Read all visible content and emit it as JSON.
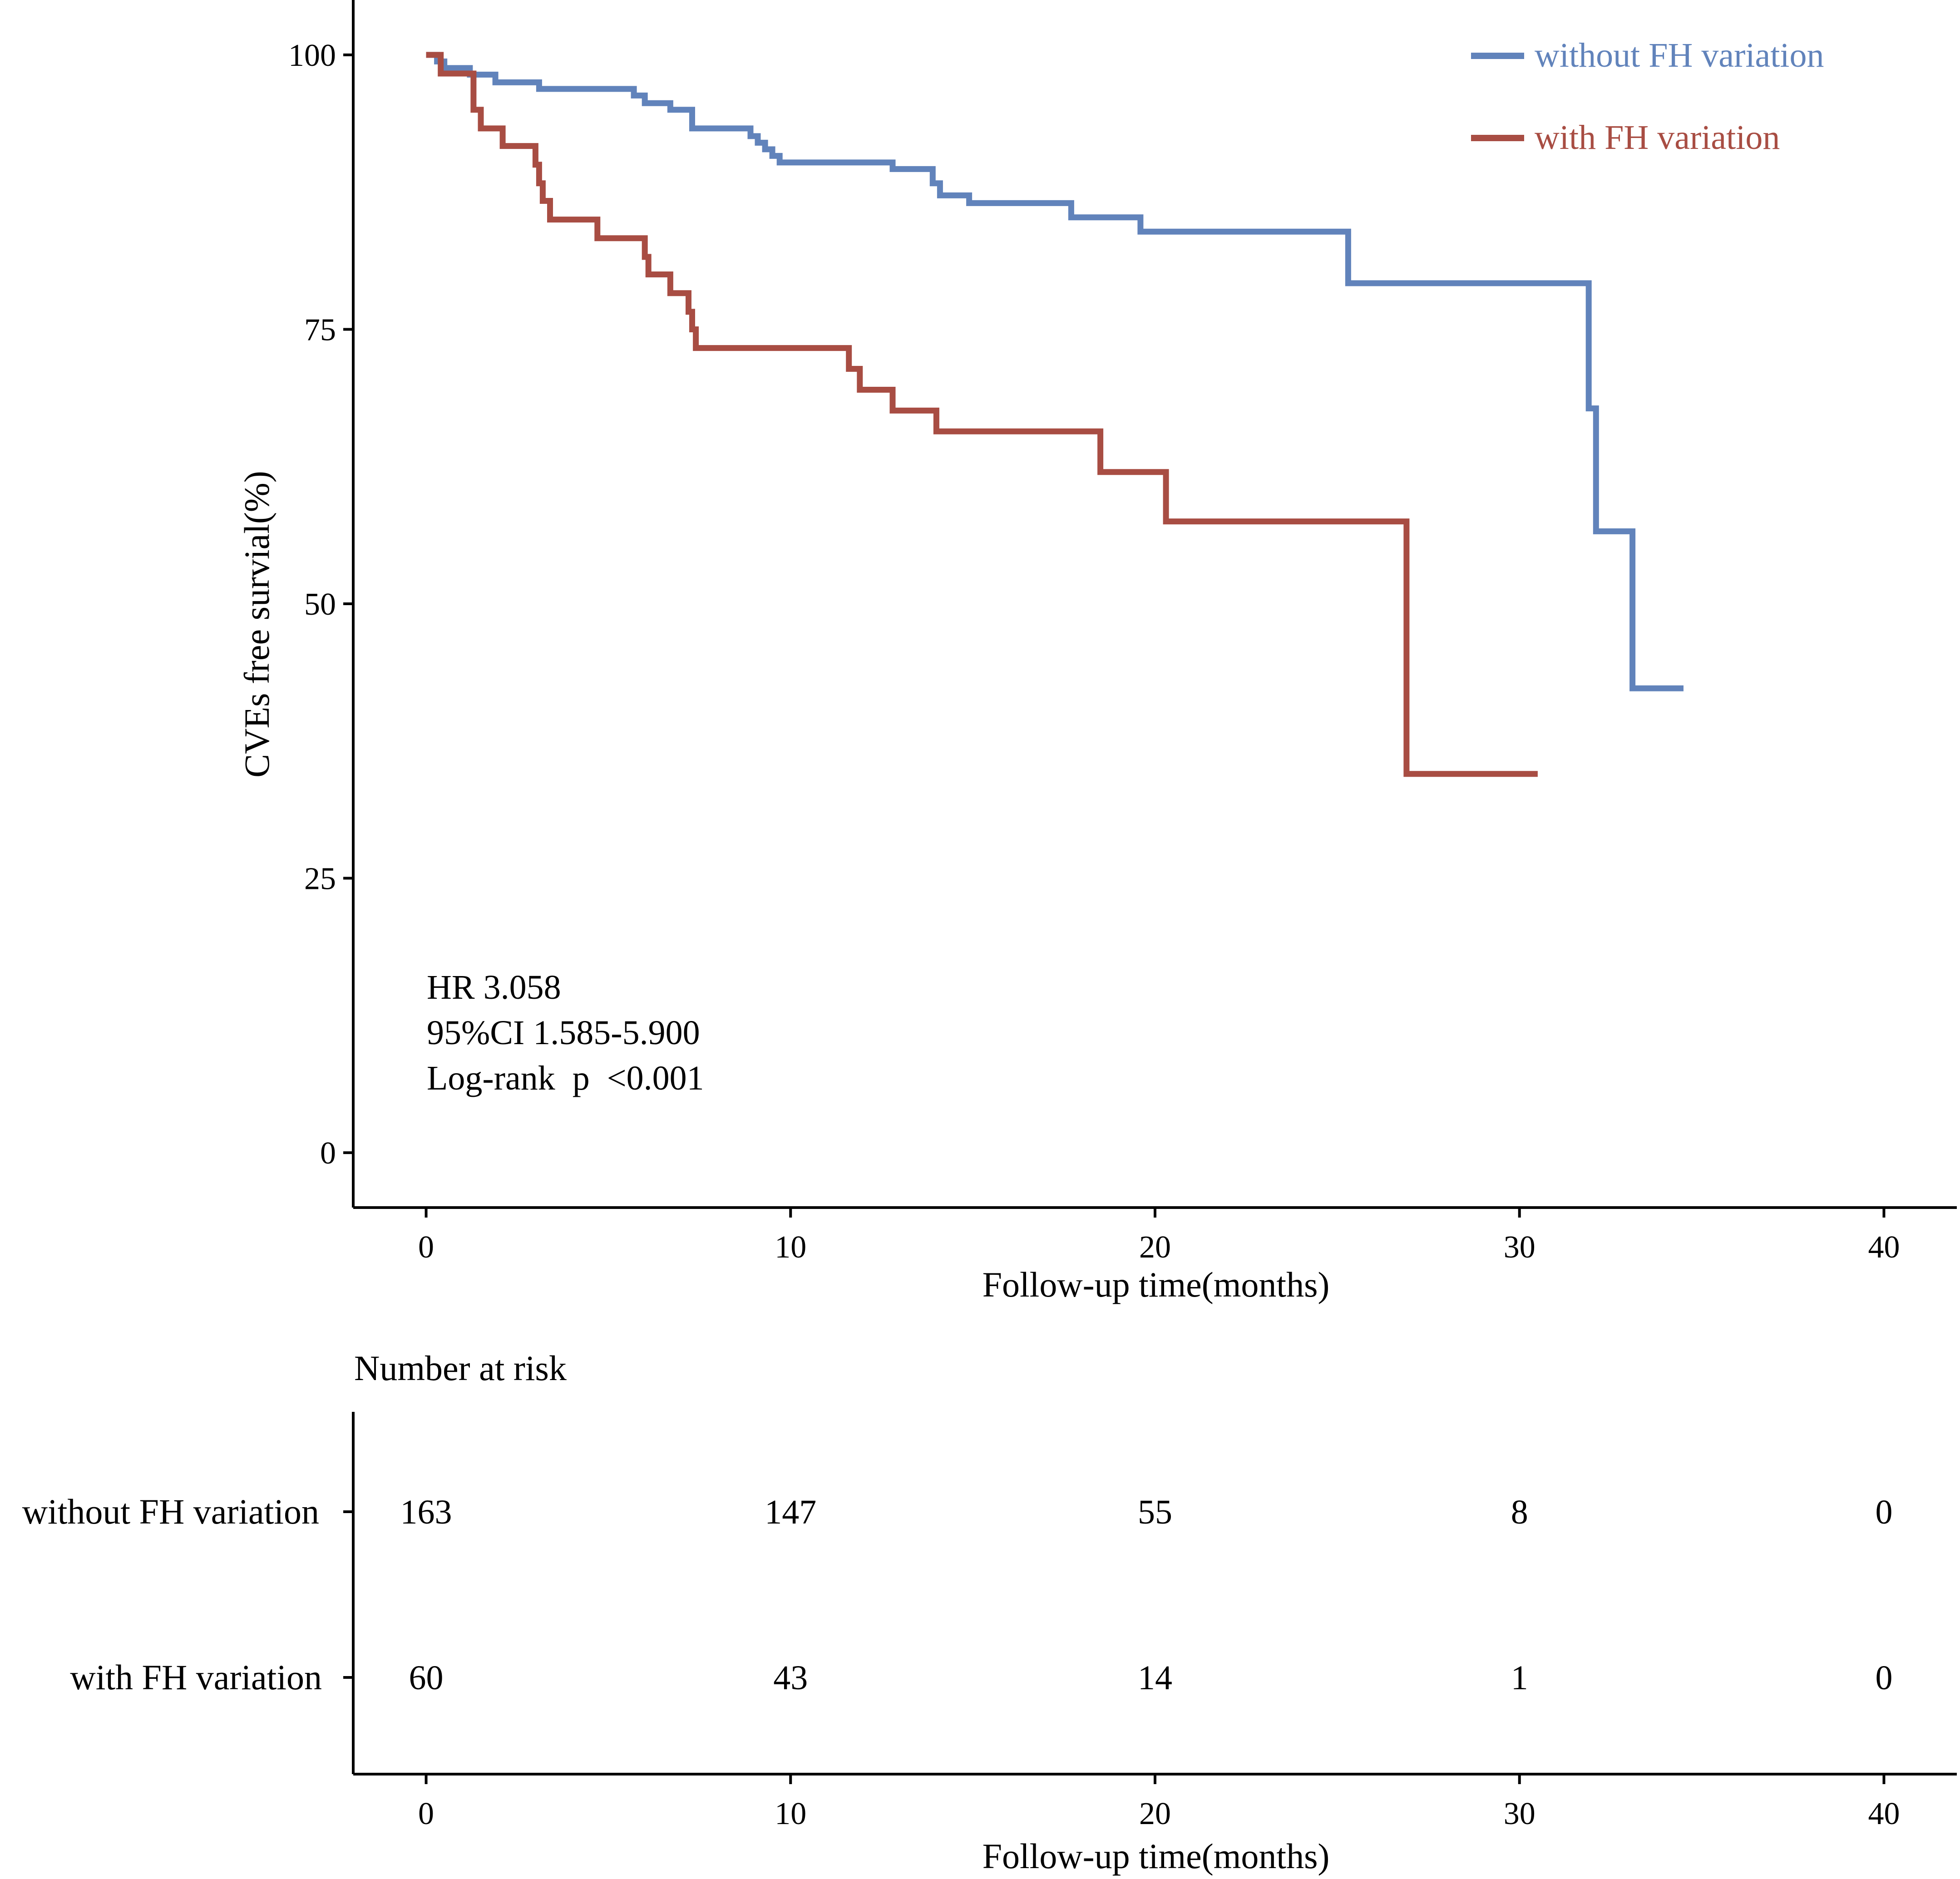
{
  "chart_data": {
    "type": "line",
    "subtype": "kaplan-meier",
    "title": "",
    "xlabel": "Follow-up time(months)",
    "ylabel": "CVEs free survial(%)",
    "xlim": [
      -2,
      42
    ],
    "ylim": [
      -5,
      105
    ],
    "xticks": [
      0,
      10,
      20,
      30,
      40
    ],
    "yticks": [
      0,
      25,
      50,
      75,
      100
    ],
    "grid": false,
    "legend_position": "top-right",
    "colors": {
      "without": "#6183bb",
      "with": "#a84d43"
    },
    "series": [
      {
        "key": "without",
        "name": "without FH variation",
        "x": [
          0,
          0.3,
          0.5,
          1.2,
          1.9,
          3.1,
          5.7,
          6,
          6.7,
          7.3,
          8.9,
          9.1,
          9.3,
          9.5,
          9.7,
          12.8,
          13.9,
          14.1,
          14.9,
          17.7,
          19.6,
          25.3,
          31.9,
          32.1,
          33.1,
          34.5
        ],
        "y": [
          100,
          99.4,
          98.8,
          98.2,
          97.5,
          96.9,
          96.3,
          95.6,
          95,
          93.3,
          92.6,
          92,
          91.4,
          90.8,
          90.2,
          89.6,
          88.3,
          87.2,
          86.5,
          85.2,
          83.9,
          79.2,
          67.8,
          56.6,
          42.3,
          42.3
        ]
      },
      {
        "key": "with",
        "name": "with FH variation",
        "x": [
          0,
          0.4,
          1.3,
          1.5,
          2.1,
          3,
          3.1,
          3.2,
          3.4,
          3.6,
          4.7,
          6,
          6.1,
          6.7,
          7.2,
          7.3,
          7.4,
          11.6,
          11.9,
          12.8,
          14,
          18.5,
          20.3,
          26.9,
          30.5
        ],
        "y": [
          100,
          98.3,
          95,
          93.3,
          91.7,
          90,
          88.3,
          86.7,
          85,
          85,
          83.3,
          81.6,
          80,
          78.3,
          76.6,
          75,
          73.3,
          71.4,
          69.5,
          67.6,
          65.7,
          62,
          57.5,
          34.5,
          34.5
        ]
      }
    ],
    "annotations": [
      "HR 3.058",
      "95%CI 1.585-5.900",
      "Log-rank  p  <0.001"
    ],
    "risk_table": {
      "title": "Number at risk",
      "xlabel": "Follow-up time(months)",
      "times": [
        0,
        10,
        20,
        30,
        40
      ],
      "rows": [
        {
          "key": "without",
          "label": "without FH variation",
          "counts": [
            "163",
            "147",
            "55",
            "8",
            "0"
          ]
        },
        {
          "key": "with",
          "label": "with FH variation",
          "counts": [
            "60",
            "43",
            "14",
            "1",
            "0"
          ]
        }
      ]
    }
  }
}
